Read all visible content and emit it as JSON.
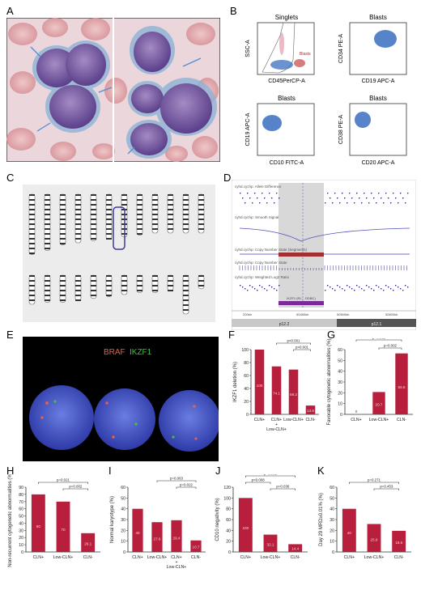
{
  "panels": {
    "A": {
      "letter": "A"
    },
    "B": {
      "letter": "B",
      "plots": [
        {
          "title": "Singlets",
          "xlabel": "CD45PerCP-A",
          "ylabel": "SSC-A",
          "gate": "Blasts"
        },
        {
          "title": "Blasts",
          "xlabel": "CD19 APC-A",
          "ylabel": "CD34 PE-A"
        },
        {
          "title": "Blasts",
          "xlabel": "CD10 FITC-A",
          "ylabel": "CD19 APC-A"
        },
        {
          "title": "Blasts",
          "xlabel": "CD20 APC-A",
          "ylabel": "CD38 PE-A"
        }
      ]
    },
    "C": {
      "letter": "C"
    },
    "D": {
      "letter": "D",
      "tracks": [
        "cyhd.cychp: Allele Difference",
        "cyhd.cychp: Smooth Signal",
        "cyhd.cychp: Copy Number State (Segments)",
        "cyhd.cychp: Copy Number State",
        "cyhd.cychp: Weighted Log2 Ratio"
      ],
      "gene_label": "IKZF1 (RL... DDBC)",
      "axis_ticks": [
        "200kb",
        "50480kb",
        "50500kb",
        "50600kb"
      ],
      "band_left": "p12.2",
      "band_right": "p12.1"
    },
    "E": {
      "letter": "E",
      "probe1": "BRAF",
      "probe2": "IKZF1",
      "probe1_color": "#e06050",
      "probe2_color": "#40c040"
    },
    "F": {
      "letter": "F"
    },
    "G": {
      "letter": "G"
    },
    "H": {
      "letter": "H"
    },
    "I": {
      "letter": "I"
    },
    "J": {
      "letter": "J"
    },
    "K": {
      "letter": "K"
    }
  },
  "chart_data": [
    {
      "id": "F",
      "type": "bar",
      "ylabel": "IKZF1 deletion (%)",
      "ylim": [
        0,
        100
      ],
      "yticks": [
        0,
        20,
        40,
        60,
        80,
        100
      ],
      "categories": [
        "CLN+",
        "CLN+ + Low-CLN+",
        "Low-CLN+",
        "CLN-"
      ],
      "values": [
        100,
        74.1,
        69.2,
        13.6
      ],
      "labels": [
        "100",
        "74.1",
        "69.2",
        "13.6"
      ],
      "pvalues": [
        "p<0.001",
        "p<0.001",
        "p<0.001"
      ]
    },
    {
      "id": "G",
      "type": "bar",
      "ylabel": "Favorable cytogenetic abnormalities (%)",
      "ylim": [
        0,
        60
      ],
      "yticks": [
        0,
        10,
        20,
        30,
        40,
        50,
        60
      ],
      "categories": [
        "CLN+",
        "Low-CLN+",
        "CLN-"
      ],
      "values": [
        0,
        20.7,
        56.5
      ],
      "labels": [
        "0",
        "20.7",
        "56.5"
      ],
      "pvalues": [
        "p<0.002",
        "p=0.002"
      ]
    },
    {
      "id": "H",
      "type": "bar",
      "ylabel": "Non-recurrent cytogenetic abnormalities (%)",
      "ylim": [
        0,
        90
      ],
      "yticks": [
        0,
        10,
        20,
        30,
        40,
        50,
        60,
        70,
        80,
        90
      ],
      "categories": [
        "CLN+",
        "Low-CLN+",
        "CLN-"
      ],
      "values": [
        80,
        70,
        26.1
      ],
      "labels": [
        "80",
        "70",
        "26.1"
      ],
      "pvalues": [
        "p=0.021",
        "p=0.002"
      ]
    },
    {
      "id": "I",
      "type": "bar",
      "ylabel": "Normal karyotype (%)",
      "ylim": [
        0,
        60
      ],
      "yticks": [
        0,
        10,
        20,
        30,
        40,
        50,
        60
      ],
      "categories": [
        "CLN+",
        "Low-CLN+",
        "CLN+ + Low-CLN+",
        "CLN-"
      ],
      "values": [
        40,
        27.6,
        29.4,
        10.7
      ],
      "labels": [
        "40",
        "27.6",
        "29.4",
        "10.7"
      ],
      "pvalues": [
        "p=0.108",
        "p=0.063",
        "p=0.022"
      ]
    },
    {
      "id": "J",
      "type": "bar",
      "ylabel": "CD10 negativity (%)",
      "ylim": [
        0,
        120
      ],
      "yticks": [
        0,
        20,
        40,
        60,
        80,
        100,
        120
      ],
      "categories": [
        "CLN+",
        "Low-CLN+",
        "CLN-"
      ],
      "values": [
        100,
        32.1,
        14.4
      ],
      "labels": [
        "100",
        "32.1",
        "14.4"
      ],
      "pvalues": [
        "p<0.001",
        "p<0.008",
        "p=0.036"
      ]
    },
    {
      "id": "K",
      "type": "bar",
      "ylabel": "Day 29 MRD≥0.01% (%)",
      "ylim": [
        0,
        60
      ],
      "yticks": [
        0,
        10,
        20,
        30,
        40,
        50,
        60
      ],
      "categories": [
        "CLN+",
        "Low-CLN+",
        "CLN-"
      ],
      "values": [
        40,
        25.9,
        19.6
      ],
      "labels": [
        "40",
        "25.9",
        "19.6"
      ],
      "pvalues": [
        "p=0.271",
        "p=0.453"
      ]
    }
  ]
}
